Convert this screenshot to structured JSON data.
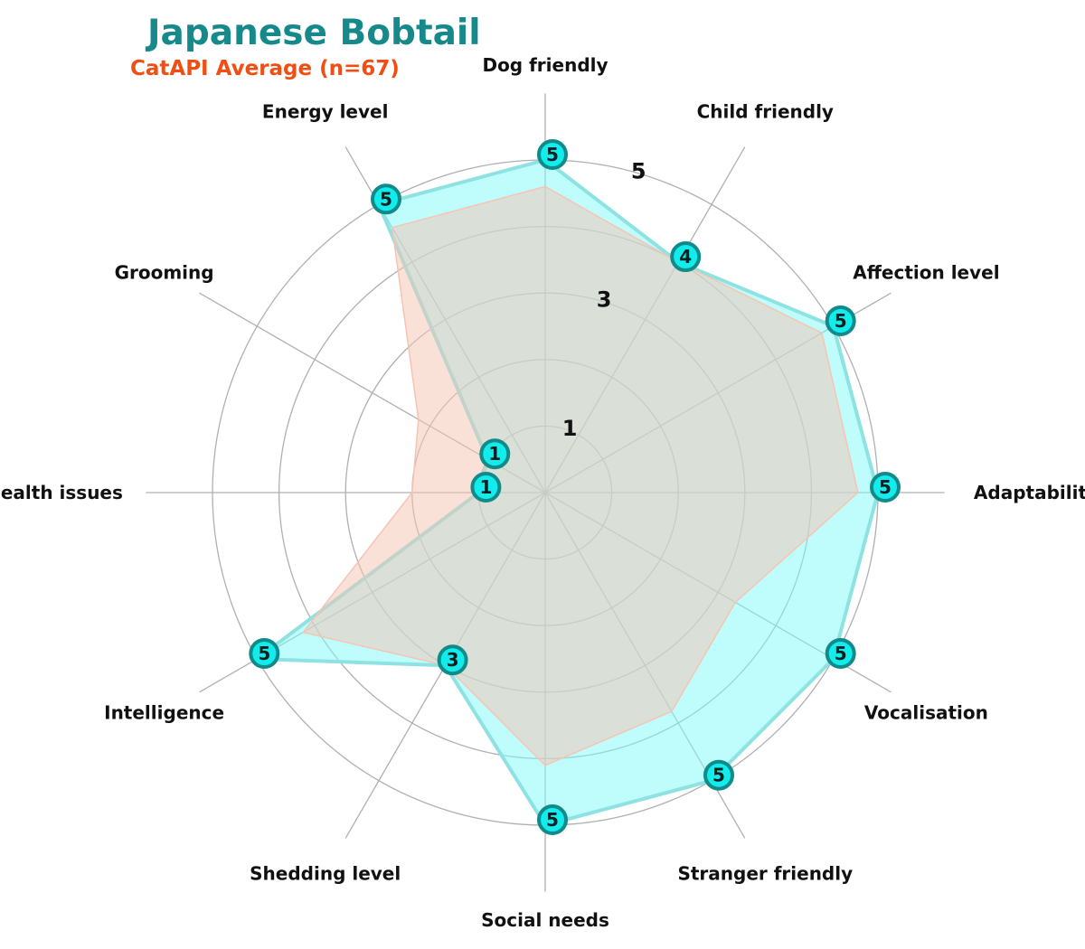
{
  "chart_data": {
    "type": "radar",
    "title": "Japanese Bobtail",
    "subtitle": "CatAPI Average (n=67)",
    "categories": [
      "Adaptability",
      "Affection level",
      "Child friendly",
      "Dog friendly",
      "Energy level",
      "Grooming",
      "Health issues",
      "Intelligence",
      "Shedding level",
      "Social needs",
      "Stranger friendly",
      "Vocalisation"
    ],
    "rlim": [
      0,
      5
    ],
    "r_ticks": [
      "1",
      "3",
      "5"
    ],
    "grid": true,
    "series": [
      {
        "name": "Japanese Bobtail",
        "values": [
          5,
          5,
          4,
          5,
          5,
          1,
          1,
          5,
          3,
          5,
          5,
          5
        ]
      },
      {
        "name": "CatAPI Average (n=67)",
        "values": [
          4.7,
          4.8,
          4.0,
          4.6,
          4.6,
          2.2,
          2.0,
          4.2,
          3.0,
          4.1,
          3.8,
          3.3
        ]
      }
    ],
    "colors": {
      "breed_fill": "#7ffcfc",
      "breed_line": "#8ee2e2",
      "marker_fill": "#12ecec",
      "marker_edge": "#118a8a",
      "average_fill": "#f6c4b2",
      "title": "#168a8a",
      "subtitle": "#f04e12",
      "grid": "#b0b0b0"
    }
  }
}
